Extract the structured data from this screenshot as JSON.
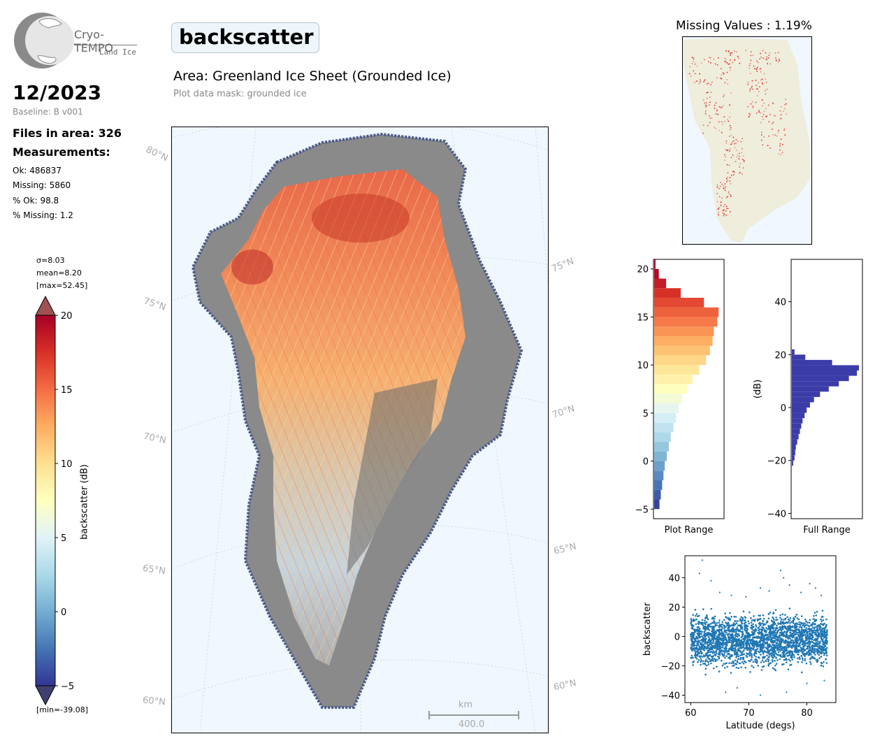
{
  "logo": {
    "name": "Cryo-TEMPO",
    "subtitle": "Land Ice"
  },
  "period": "12/2023",
  "baseline": "Baseline: B v001",
  "files_label": "Files in area: 326",
  "measurements_label": "Measurements:",
  "stats": [
    "Ok: 486837",
    "Missing: 5860",
    "% Ok: 98.8",
    "% Missing: 1.2"
  ],
  "colorbar": {
    "sigma": "σ=8.03",
    "mean": "mean=8.20",
    "max": "[max=52.45]",
    "min": "[min=-39.08]",
    "label": "backscatter (dB)",
    "ticks": [
      20,
      15,
      10,
      5,
      0,
      -5
    ],
    "range": [
      -5,
      20
    ]
  },
  "title": "backscatter",
  "area": "Area: Greenland Ice Sheet (Grounded Ice)",
  "mask": "Plot data mask: grounded ice",
  "map": {
    "lat_labels": [
      "80°N",
      "75°N",
      "70°N",
      "65°N",
      "60°N",
      "75°N",
      "70°N",
      "65°N",
      "60°N"
    ],
    "scale_unit": "km",
    "scale_value": "400.0"
  },
  "missing_title": "Missing Values : 1.19%",
  "colors": {
    "map_bg": "#f0f7fe",
    "land": "#efeddb",
    "missing": "#dd1111",
    "hist_full": "#3c3ca8",
    "scatter": "#1f77b4"
  },
  "chart_data": [
    {
      "type": "bar",
      "orientation": "horizontal",
      "xlabel": "Plot Range",
      "ylim": [
        -6,
        21
      ],
      "yticks": [
        20,
        15,
        10,
        5,
        0,
        -5
      ],
      "bins_y": [
        -5,
        -4,
        -3,
        -2,
        -1,
        0,
        1,
        2,
        3,
        4,
        5,
        6,
        7,
        8,
        9,
        10,
        11,
        12,
        13,
        14,
        15,
        16,
        17,
        18,
        19,
        20
      ],
      "counts": [
        0.08,
        0.1,
        0.12,
        0.14,
        0.16,
        0.19,
        0.22,
        0.25,
        0.29,
        0.33,
        0.37,
        0.42,
        0.5,
        0.58,
        0.68,
        0.78,
        0.84,
        0.88,
        0.9,
        0.95,
        0.97,
        0.75,
        0.4,
        0.18,
        0.07,
        0.02
      ]
    },
    {
      "type": "bar",
      "orientation": "horizontal",
      "xlabel": "Full Range",
      "ylabel": "(dB)",
      "ylim": [
        -42,
        56
      ],
      "yticks": [
        40,
        20,
        0,
        -20,
        -40
      ],
      "bins_y": [
        -22,
        -20,
        -18,
        -16,
        -14,
        -12,
        -10,
        -8,
        -6,
        -4,
        -2,
        0,
        2,
        4,
        6,
        8,
        10,
        12,
        14,
        16,
        18,
        20
      ],
      "counts": [
        0.02,
        0.04,
        0.05,
        0.06,
        0.08,
        0.1,
        0.12,
        0.14,
        0.16,
        0.19,
        0.22,
        0.27,
        0.33,
        0.42,
        0.55,
        0.7,
        0.85,
        0.97,
        1.0,
        0.6,
        0.2,
        0.04
      ]
    },
    {
      "type": "scatter",
      "xlabel": "Latitude (degs)",
      "ylabel": "backscatter",
      "xlim": [
        59,
        85
      ],
      "ylim": [
        -45,
        55
      ],
      "xticks": [
        60,
        70,
        80
      ],
      "yticks": [
        40,
        20,
        0,
        -20,
        -40
      ],
      "x_range": [
        60,
        83.5
      ],
      "band": [
        -25,
        20
      ],
      "outliers": [
        [
          62,
          52
        ],
        [
          61.5,
          43
        ],
        [
          63.5,
          38
        ],
        [
          65,
          30
        ],
        [
          67,
          28
        ],
        [
          69.5,
          27
        ],
        [
          72,
          33
        ],
        [
          73.5,
          31
        ],
        [
          75.5,
          45
        ],
        [
          76,
          40
        ],
        [
          77,
          35
        ],
        [
          79,
          30
        ],
        [
          80.5,
          36
        ],
        [
          81.5,
          33
        ],
        [
          82.5,
          28
        ],
        [
          66,
          -38
        ],
        [
          68,
          -35
        ],
        [
          72,
          -40
        ],
        [
          76.5,
          -38
        ],
        [
          80,
          -32
        ],
        [
          83,
          -30
        ]
      ]
    }
  ]
}
